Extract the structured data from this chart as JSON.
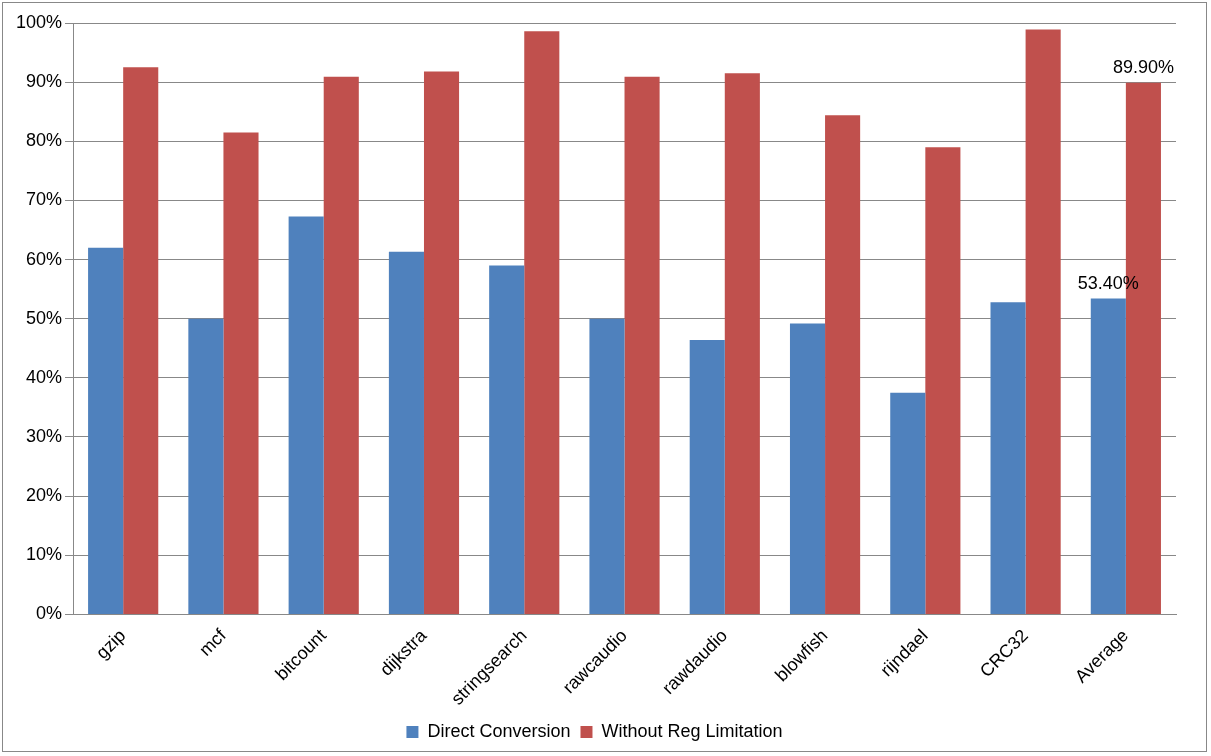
{
  "chart_data": {
    "type": "bar",
    "categories": [
      "gzip",
      "mcf",
      "bitcount",
      "dijkstra",
      "stringsearch",
      "rawcaudio",
      "rawdaudio",
      "blowfish",
      "rijndael",
      "CRC32",
      "Average"
    ],
    "series": [
      {
        "name": "Direct Conversion",
        "color": "#4f81bd",
        "values": [
          62.0,
          50.0,
          67.3,
          61.3,
          59.0,
          50.0,
          46.4,
          49.2,
          37.5,
          52.8,
          53.4
        ],
        "value_labels": [
          null,
          null,
          null,
          null,
          null,
          null,
          null,
          null,
          null,
          null,
          "53.40%"
        ]
      },
      {
        "name": "Without Reg Limitation",
        "color": "#c0504d",
        "values": [
          92.5,
          81.5,
          90.9,
          91.8,
          98.6,
          90.9,
          91.5,
          84.4,
          79.0,
          98.9,
          89.9
        ],
        "value_labels": [
          null,
          null,
          null,
          null,
          null,
          null,
          null,
          null,
          null,
          null,
          "89.90%"
        ]
      }
    ],
    "ylim": [
      0,
      100
    ],
    "yticks": [
      {
        "value": 0,
        "label": "0%"
      },
      {
        "value": 10,
        "label": "10%"
      },
      {
        "value": 20,
        "label": "20%"
      },
      {
        "value": 30,
        "label": "30%"
      },
      {
        "value": 40,
        "label": "40%"
      },
      {
        "value": 50,
        "label": "50%"
      },
      {
        "value": 60,
        "label": "60%"
      },
      {
        "value": 70,
        "label": "70%"
      },
      {
        "value": 80,
        "label": "80%"
      },
      {
        "value": 90,
        "label": "90%"
      },
      {
        "value": 100,
        "label": "100%"
      }
    ],
    "grid": "y",
    "legend": "bottom"
  }
}
